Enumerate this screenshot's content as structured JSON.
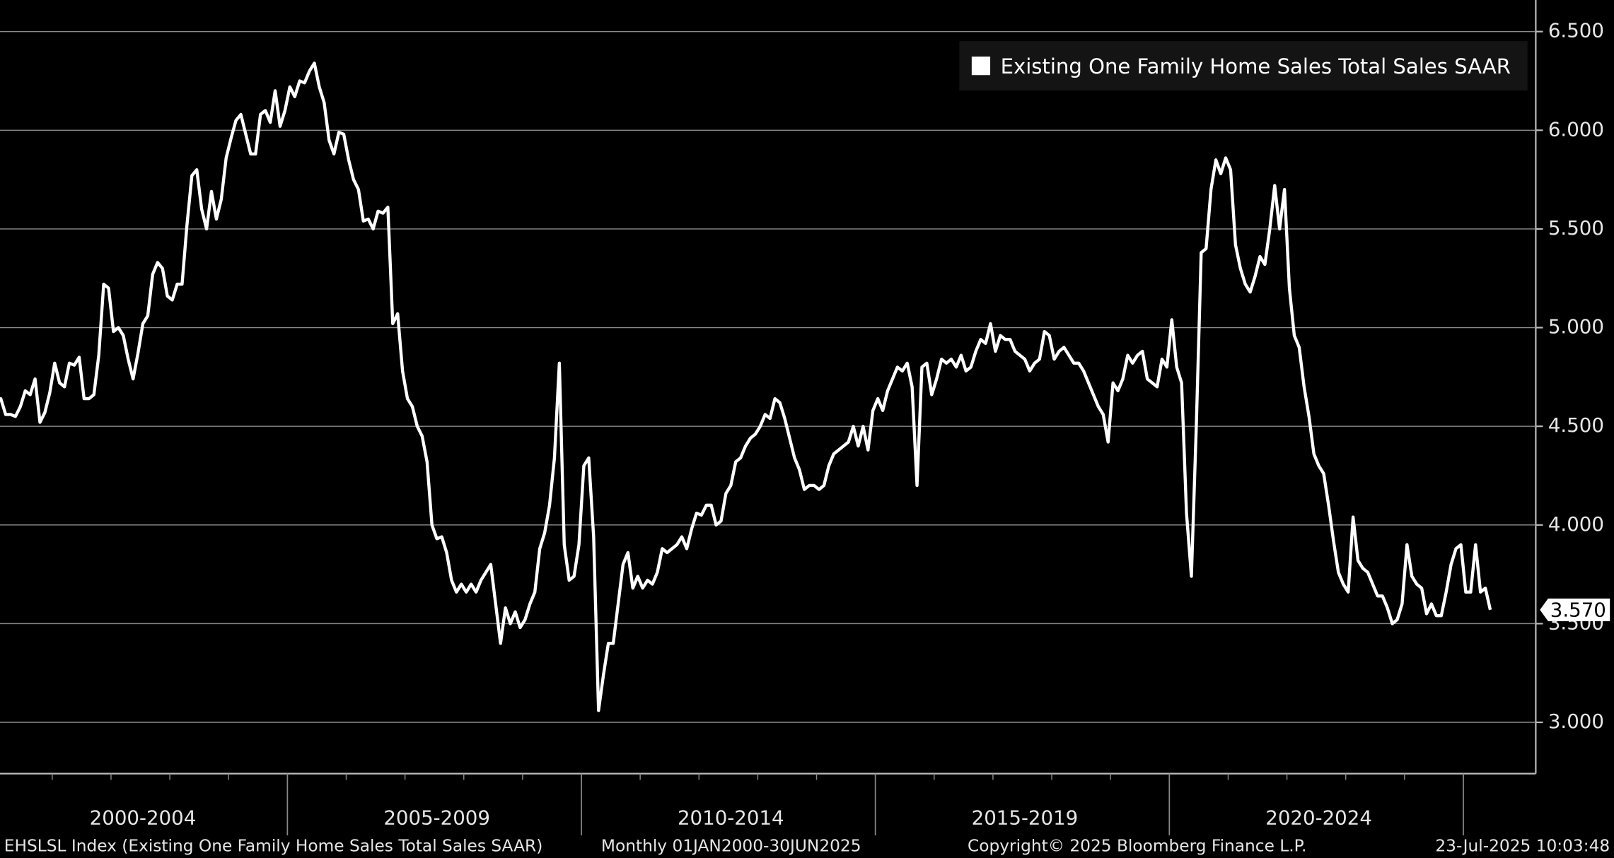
{
  "chart_data": {
    "type": "line",
    "legend": "Existing One Family Home Sales Total Sales SAAR",
    "legend_position": "upper right",
    "color": "#ffffff",
    "grid": true,
    "x_period_labels": [
      "2000-2004",
      "2005-2009",
      "2010-2014",
      "2015-2019",
      "2020-2024"
    ],
    "values": [
      4.62,
      4.64,
      4.56,
      4.56,
      4.55,
      4.6,
      4.68,
      4.66,
      4.74,
      4.52,
      4.57,
      4.67,
      4.82,
      4.72,
      4.7,
      4.82,
      4.81,
      4.85,
      4.64,
      4.64,
      4.66,
      4.86,
      5.22,
      5.2,
      4.98,
      5.0,
      4.96,
      4.84,
      4.74,
      4.87,
      5.02,
      5.06,
      5.27,
      5.33,
      5.3,
      5.16,
      5.14,
      5.22,
      5.22,
      5.52,
      5.77,
      5.8,
      5.6,
      5.5,
      5.69,
      5.55,
      5.65,
      5.86,
      5.96,
      6.05,
      6.08,
      5.98,
      5.88,
      5.88,
      6.08,
      6.1,
      6.04,
      6.2,
      6.02,
      6.1,
      6.22,
      6.17,
      6.25,
      6.24,
      6.3,
      6.34,
      6.22,
      6.14,
      5.95,
      5.88,
      5.99,
      5.98,
      5.85,
      5.75,
      5.7,
      5.54,
      5.55,
      5.5,
      5.59,
      5.58,
      5.61,
      5.02,
      5.07,
      4.78,
      4.64,
      4.6,
      4.5,
      4.45,
      4.32,
      4.0,
      3.93,
      3.94,
      3.86,
      3.72,
      3.66,
      3.7,
      3.66,
      3.7,
      3.66,
      3.72,
      3.76,
      3.8,
      3.6,
      3.4,
      3.58,
      3.5,
      3.56,
      3.48,
      3.52,
      3.6,
      3.66,
      3.88,
      3.96,
      4.1,
      4.34,
      4.82,
      3.9,
      3.72,
      3.74,
      3.9,
      4.3,
      4.34,
      3.94,
      3.06,
      3.24,
      3.4,
      3.4,
      3.6,
      3.8,
      3.86,
      3.68,
      3.74,
      3.68,
      3.72,
      3.7,
      3.76,
      3.88,
      3.86,
      3.88,
      3.9,
      3.94,
      3.88,
      3.98,
      4.06,
      4.05,
      4.1,
      4.1,
      4.0,
      4.02,
      4.16,
      4.2,
      4.32,
      4.34,
      4.4,
      4.44,
      4.46,
      4.5,
      4.56,
      4.54,
      4.64,
      4.62,
      4.54,
      4.44,
      4.34,
      4.28,
      4.18,
      4.2,
      4.2,
      4.18,
      4.2,
      4.3,
      4.36,
      4.38,
      4.4,
      4.42,
      4.5,
      4.4,
      4.5,
      4.38,
      4.58,
      4.64,
      4.58,
      4.68,
      4.74,
      4.8,
      4.78,
      4.82,
      4.7,
      4.2,
      4.8,
      4.82,
      4.66,
      4.74,
      4.84,
      4.82,
      4.84,
      4.8,
      4.86,
      4.78,
      4.8,
      4.88,
      4.94,
      4.92,
      5.02,
      4.88,
      4.96,
      4.94,
      4.94,
      4.88,
      4.86,
      4.84,
      4.78,
      4.82,
      4.84,
      4.98,
      4.96,
      4.84,
      4.88,
      4.9,
      4.86,
      4.82,
      4.82,
      4.78,
      4.72,
      4.66,
      4.6,
      4.56,
      4.42,
      4.72,
      4.68,
      4.74,
      4.86,
      4.82,
      4.86,
      4.88,
      4.74,
      4.72,
      4.7,
      4.84,
      4.8,
      5.04,
      4.8,
      4.72,
      4.06,
      3.74,
      4.5,
      5.38,
      5.4,
      5.7,
      5.85,
      5.78,
      5.86,
      5.8,
      5.42,
      5.3,
      5.22,
      5.18,
      5.26,
      5.36,
      5.32,
      5.5,
      5.72,
      5.5,
      5.7,
      5.2,
      4.96,
      4.9,
      4.7,
      4.55,
      4.36,
      4.3,
      4.26,
      4.1,
      3.92,
      3.76,
      3.7,
      3.66,
      4.04,
      3.82,
      3.78,
      3.76,
      3.7,
      3.64,
      3.64,
      3.58,
      3.5,
      3.52,
      3.6,
      3.9,
      3.74,
      3.7,
      3.68,
      3.55,
      3.6,
      3.54,
      3.54,
      3.66,
      3.8,
      3.88,
      3.9,
      3.66,
      3.66,
      3.9,
      3.66,
      3.68,
      3.57
    ],
    "last_value_label": "3.570",
    "ylim": [
      2.74,
      6.66
    ],
    "yticks": [
      {
        "value": 3.0,
        "label": "3.000"
      },
      {
        "value": 3.5,
        "label": "3.500"
      },
      {
        "value": 4.0,
        "label": "4.000"
      },
      {
        "value": 4.5,
        "label": "4.500"
      },
      {
        "value": 5.0,
        "label": "5.000"
      },
      {
        "value": 5.5,
        "label": "5.500"
      },
      {
        "value": 6.0,
        "label": "6.000"
      },
      {
        "value": 6.5,
        "label": "6.500"
      }
    ],
    "footer": {
      "source": "EHSLSL Index (Existing One Family Home Sales Total Sales SAAR)",
      "period": "Monthly 01JAN2000-30JUN2025",
      "copyright": "Copyright© 2025 Bloomberg Finance L.P.",
      "timestamp": "23-Jul-2025 10:03:48"
    }
  }
}
